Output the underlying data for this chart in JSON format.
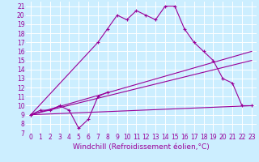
{
  "xlabel": "Windchill (Refroidissement éolien,°C)",
  "bg_color": "#cceeff",
  "line_color": "#990099",
  "grid_color": "#ffffff",
  "xlim": [
    -0.5,
    23.5
  ],
  "ylim": [
    7,
    21.5
  ],
  "xticks": [
    0,
    1,
    2,
    3,
    4,
    5,
    6,
    7,
    8,
    9,
    10,
    11,
    12,
    13,
    14,
    15,
    16,
    17,
    18,
    19,
    20,
    21,
    22,
    23
  ],
  "yticks": [
    7,
    8,
    9,
    10,
    11,
    12,
    13,
    14,
    15,
    16,
    17,
    18,
    19,
    20,
    21
  ],
  "s1x": [
    0,
    1,
    2,
    3,
    4,
    5,
    6,
    7,
    8
  ],
  "s1y": [
    9,
    9.5,
    9.5,
    10,
    9.5,
    7.5,
    8.5,
    11,
    11.5
  ],
  "s2x": [
    0,
    7,
    8,
    9,
    10,
    11,
    12,
    13,
    14,
    15,
    16,
    17,
    18,
    19,
    20,
    21,
    22,
    23
  ],
  "s2y": [
    9,
    17,
    18.5,
    20,
    19.5,
    20.5,
    20,
    19.5,
    21,
    21,
    18.5,
    17,
    16,
    15,
    13,
    12.5,
    10,
    10
  ],
  "l1x": [
    0,
    23
  ],
  "l1y": [
    9,
    16
  ],
  "l2x": [
    0,
    23
  ],
  "l2y": [
    9,
    15
  ],
  "l3x": [
    0,
    23
  ],
  "l3y": [
    9,
    10
  ],
  "fontsize_label": 6.5,
  "fontsize_tick": 5.5
}
